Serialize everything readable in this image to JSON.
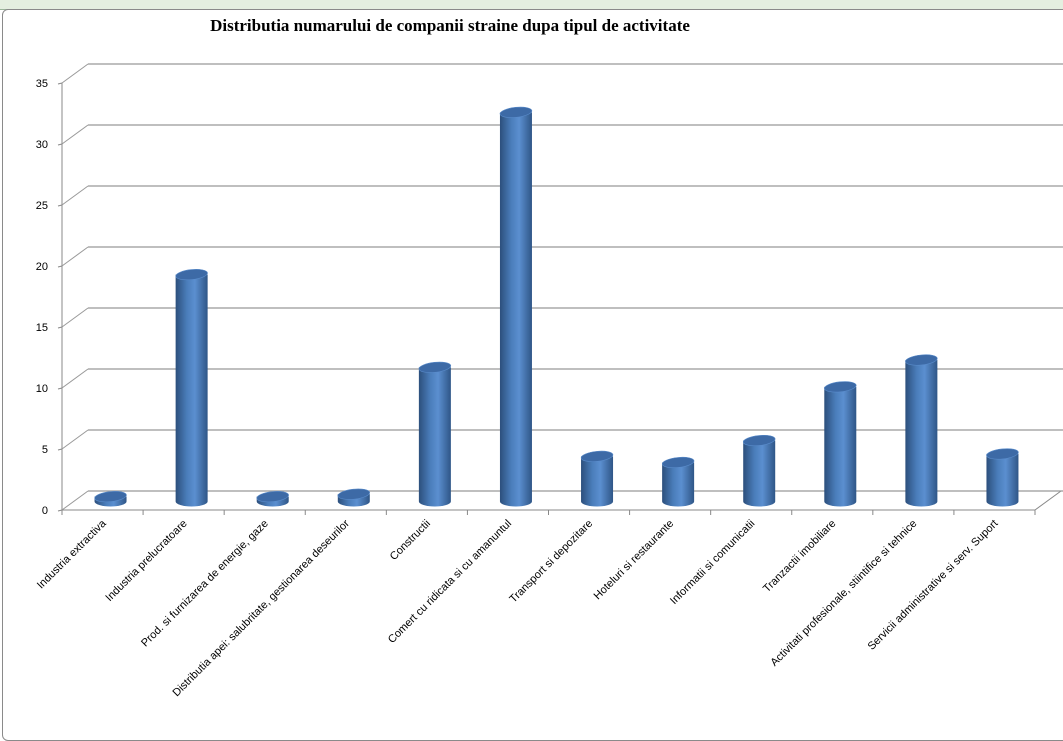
{
  "chart_data": {
    "type": "bar",
    "style": "3d-cylinder",
    "title": "Distributia numarului de companii straine dupa tipul de activitate",
    "xlabel": "",
    "ylabel": "",
    "ylim": [
      0,
      35
    ],
    "yticks": [
      "0",
      "5",
      "10",
      "15",
      "20",
      "25",
      "30",
      "35"
    ],
    "grid": true,
    "legend": "none",
    "bar_color": "#4f81bd",
    "categories": [
      "Industria extractiva",
      "Industria prelucratoare",
      "Prod. si furnizarea de energie, gaze",
      "Distributia apei: salubritate, gestionarea deseurilor",
      "Constructii",
      "Comert cu ridicata si cu amanuntul",
      "Transport si depozitare",
      "Hoteluri si restaurante",
      "Informatii si comunicatii",
      "Tranzactii imobiliare",
      "Activitati profesionale, stiintifice si tehnice",
      "Servicii administrative si serv. Suport"
    ],
    "values": [
      0.4,
      18.6,
      0.4,
      0.6,
      11,
      31.9,
      3.7,
      3.2,
      5,
      9.4,
      11.6,
      3.9
    ]
  }
}
